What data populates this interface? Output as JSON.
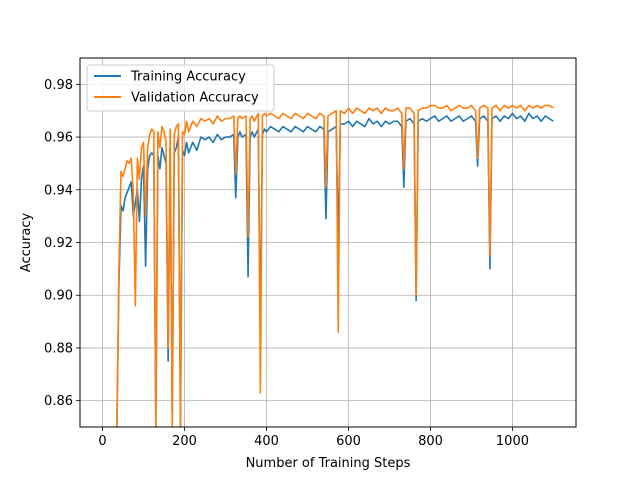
{
  "chart_data": {
    "type": "line",
    "title": "",
    "xlabel": "Number of Training Steps",
    "ylabel": "Accuracy",
    "xlim": [
      -55,
      1155
    ],
    "ylim": [
      0.85,
      0.99
    ],
    "xticks": [
      0,
      200,
      400,
      600,
      800,
      1000
    ],
    "yticks": [
      0.86,
      0.88,
      0.9,
      0.92,
      0.94,
      0.96,
      0.98
    ],
    "xtick_labels": [
      "0",
      "200",
      "400",
      "600",
      "800",
      "1000"
    ],
    "ytick_labels": [
      "0.86",
      "0.88",
      "0.90",
      "0.92",
      "0.94",
      "0.96",
      "0.98"
    ],
    "grid": true,
    "legend_position": "top-left",
    "colors": {
      "train": "#1f77b4",
      "val": "#ff7f0e",
      "grid": "#b0b0b0"
    },
    "series": [
      {
        "name": "Training Accuracy",
        "color": "#1f77b4",
        "x": [
          35,
          40,
          45,
          50,
          55,
          60,
          65,
          70,
          75,
          80,
          85,
          90,
          95,
          100,
          105,
          110,
          115,
          120,
          125,
          130,
          135,
          140,
          145,
          150,
          155,
          160,
          165,
          170,
          175,
          180,
          185,
          190,
          195,
          200,
          205,
          210,
          220,
          230,
          240,
          250,
          260,
          270,
          280,
          290,
          300,
          310,
          320,
          325,
          330,
          335,
          340,
          350,
          355,
          360,
          365,
          370,
          380,
          385,
          390,
          395,
          400,
          410,
          420,
          430,
          440,
          450,
          460,
          470,
          480,
          490,
          500,
          510,
          520,
          530,
          540,
          545,
          550,
          560,
          570,
          575,
          580,
          590,
          600,
          610,
          620,
          630,
          640,
          650,
          660,
          670,
          680,
          690,
          700,
          710,
          720,
          730,
          735,
          740,
          750,
          760,
          765,
          770,
          780,
          790,
          800,
          810,
          820,
          830,
          840,
          850,
          860,
          870,
          880,
          890,
          900,
          910,
          915,
          920,
          930,
          940,
          945,
          950,
          960,
          970,
          980,
          990,
          1000,
          1010,
          1020,
          1030,
          1040,
          1050,
          1060,
          1070,
          1080,
          1090,
          1100
        ],
        "values": [
          0.85,
          0.905,
          0.934,
          0.932,
          0.937,
          0.939,
          0.941,
          0.943,
          0.93,
          0.935,
          0.94,
          0.928,
          0.944,
          0.949,
          0.911,
          0.948,
          0.953,
          0.954,
          0.953,
          0.85,
          0.953,
          0.948,
          0.956,
          0.953,
          0.95,
          0.875,
          0.955,
          0.855,
          0.954,
          0.956,
          0.96,
          0.85,
          0.955,
          0.953,
          0.958,
          0.954,
          0.958,
          0.955,
          0.96,
          0.959,
          0.96,
          0.958,
          0.961,
          0.959,
          0.96,
          0.96,
          0.961,
          0.937,
          0.96,
          0.962,
          0.96,
          0.961,
          0.907,
          0.96,
          0.962,
          0.96,
          0.963,
          0.885,
          0.961,
          0.963,
          0.962,
          0.964,
          0.963,
          0.962,
          0.964,
          0.963,
          0.962,
          0.964,
          0.963,
          0.962,
          0.964,
          0.963,
          0.962,
          0.964,
          0.963,
          0.929,
          0.962,
          0.963,
          0.964,
          0.92,
          0.965,
          0.965,
          0.966,
          0.964,
          0.966,
          0.965,
          0.964,
          0.967,
          0.965,
          0.966,
          0.964,
          0.966,
          0.965,
          0.966,
          0.966,
          0.964,
          0.941,
          0.966,
          0.967,
          0.965,
          0.898,
          0.966,
          0.967,
          0.966,
          0.967,
          0.968,
          0.966,
          0.967,
          0.968,
          0.966,
          0.967,
          0.968,
          0.966,
          0.967,
          0.968,
          0.966,
          0.949,
          0.967,
          0.968,
          0.966,
          0.91,
          0.967,
          0.968,
          0.966,
          0.968,
          0.967,
          0.969,
          0.967,
          0.968,
          0.966,
          0.969,
          0.967,
          0.968,
          0.966,
          0.968,
          0.967,
          0.966
        ]
      },
      {
        "name": "Validation Accuracy",
        "color": "#ff7f0e",
        "x": [
          35,
          40,
          45,
          50,
          55,
          60,
          65,
          70,
          75,
          80,
          85,
          90,
          95,
          100,
          105,
          110,
          115,
          120,
          125,
          130,
          135,
          140,
          145,
          150,
          155,
          160,
          165,
          170,
          175,
          180,
          185,
          190,
          195,
          200,
          205,
          210,
          220,
          230,
          240,
          250,
          260,
          270,
          280,
          290,
          300,
          310,
          320,
          325,
          330,
          335,
          340,
          350,
          355,
          360,
          365,
          370,
          380,
          385,
          390,
          395,
          400,
          410,
          420,
          430,
          440,
          450,
          460,
          470,
          480,
          490,
          500,
          510,
          520,
          530,
          540,
          545,
          550,
          560,
          570,
          575,
          580,
          590,
          600,
          610,
          620,
          630,
          640,
          650,
          660,
          670,
          680,
          690,
          700,
          710,
          720,
          730,
          735,
          740,
          750,
          760,
          765,
          770,
          780,
          790,
          800,
          810,
          820,
          830,
          840,
          850,
          860,
          870,
          880,
          890,
          900,
          910,
          915,
          920,
          930,
          940,
          945,
          950,
          960,
          970,
          980,
          990,
          1000,
          1010,
          1020,
          1030,
          1040,
          1050,
          1060,
          1070,
          1080,
          1090,
          1100
        ],
        "values": [
          0.85,
          0.91,
          0.947,
          0.945,
          0.948,
          0.951,
          0.95,
          0.952,
          0.939,
          0.896,
          0.952,
          0.944,
          0.956,
          0.958,
          0.93,
          0.956,
          0.961,
          0.963,
          0.962,
          0.85,
          0.962,
          0.956,
          0.964,
          0.962,
          0.958,
          0.88,
          0.963,
          0.85,
          0.961,
          0.964,
          0.965,
          0.85,
          0.962,
          0.961,
          0.966,
          0.962,
          0.966,
          0.964,
          0.967,
          0.966,
          0.967,
          0.965,
          0.968,
          0.966,
          0.967,
          0.967,
          0.968,
          0.946,
          0.967,
          0.968,
          0.967,
          0.968,
          0.922,
          0.967,
          0.968,
          0.966,
          0.969,
          0.863,
          0.968,
          0.969,
          0.968,
          0.969,
          0.968,
          0.967,
          0.969,
          0.968,
          0.967,
          0.969,
          0.968,
          0.967,
          0.969,
          0.968,
          0.967,
          0.969,
          0.968,
          0.941,
          0.968,
          0.969,
          0.97,
          0.886,
          0.97,
          0.969,
          0.971,
          0.969,
          0.971,
          0.97,
          0.969,
          0.971,
          0.97,
          0.971,
          0.969,
          0.971,
          0.97,
          0.97,
          0.971,
          0.969,
          0.948,
          0.971,
          0.971,
          0.969,
          0.9,
          0.97,
          0.971,
          0.971,
          0.972,
          0.972,
          0.971,
          0.971,
          0.972,
          0.97,
          0.971,
          0.972,
          0.971,
          0.971,
          0.972,
          0.97,
          0.952,
          0.971,
          0.972,
          0.971,
          0.915,
          0.971,
          0.972,
          0.97,
          0.972,
          0.971,
          0.972,
          0.971,
          0.972,
          0.97,
          0.972,
          0.971,
          0.972,
          0.971,
          0.972,
          0.972,
          0.971
        ]
      }
    ]
  }
}
